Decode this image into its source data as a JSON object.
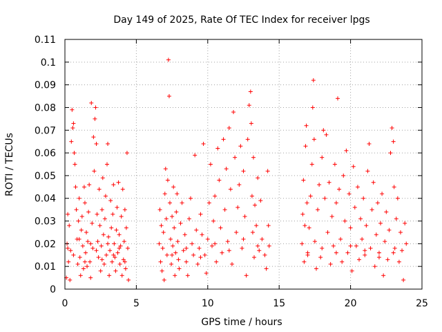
{
  "chart_data": {
    "type": "scatter",
    "title": "Day 149 of 2025, Rate Of TEC Index for receiver lpgs",
    "xlabel": "GPS time / hours",
    "ylabel": "ROTI / TECUs",
    "xlim": [
      0,
      25
    ],
    "ylim": [
      0,
      0.11
    ],
    "x_ticks": [
      0,
      5,
      10,
      15,
      20,
      25
    ],
    "x_tick_labels": [
      "0",
      "5",
      "10",
      "15",
      "20",
      "25"
    ],
    "y_ticks": [
      0,
      0.01,
      0.02,
      0.03,
      0.04,
      0.05,
      0.06,
      0.07,
      0.08,
      0.09,
      0.1,
      0.11
    ],
    "y_tick_labels": [
      "0",
      "0.01",
      "0.02",
      "0.03",
      "0.04",
      "0.05",
      "0.06",
      "0.07",
      "0.08",
      "0.09",
      "0.1",
      "0.11"
    ],
    "grid": true,
    "marker": "+",
    "series": [
      {
        "name": "ROTI",
        "color": "#ff0000",
        "points": [
          [
            0.1,
            0.005
          ],
          [
            0.15,
            0.02
          ],
          [
            0.2,
            0.033
          ],
          [
            0.25,
            0.012
          ],
          [
            0.3,
            0.028
          ],
          [
            0.35,
            0.004
          ],
          [
            0.4,
            0.017
          ],
          [
            0.45,
            0.065
          ],
          [
            0.5,
            0.079
          ],
          [
            0.55,
            0.071
          ],
          [
            0.6,
            0.073
          ],
          [
            0.65,
            0.06
          ],
          [
            0.7,
            0.055
          ],
          [
            0.75,
            0.045
          ],
          [
            0.8,
            0.035
          ],
          [
            0.85,
            0.022
          ],
          [
            0.9,
            0.011
          ],
          [
            0.95,
            0.03
          ],
          [
            1.0,
            0.04
          ],
          [
            1.05,
            0.014
          ],
          [
            1.1,
            0.006
          ],
          [
            1.15,
            0.026
          ],
          [
            1.2,
            0.032
          ],
          [
            1.25,
            0.019
          ],
          [
            1.3,
            0.009
          ],
          [
            1.35,
            0.045
          ],
          [
            1.4,
            0.038
          ],
          [
            1.45,
            0.016
          ],
          [
            1.5,
            0.025
          ],
          [
            1.55,
            0.01
          ],
          [
            1.6,
            0.021
          ],
          [
            1.65,
            0.034
          ],
          [
            1.7,
            0.046
          ],
          [
            1.75,
            0.012
          ],
          [
            1.8,
            0.005
          ],
          [
            1.85,
            0.082
          ],
          [
            1.9,
            0.029
          ],
          [
            1.95,
            0.018
          ],
          [
            2.0,
            0.067
          ],
          [
            2.05,
            0.052
          ],
          [
            2.1,
            0.075
          ],
          [
            2.15,
            0.08
          ],
          [
            2.2,
            0.064
          ],
          [
            2.25,
            0.033
          ],
          [
            2.3,
            0.021
          ],
          [
            2.35,
            0.014
          ],
          [
            2.4,
            0.044
          ],
          [
            2.45,
            0.028
          ],
          [
            2.5,
            0.008
          ],
          [
            2.55,
            0.019
          ],
          [
            2.6,
            0.035
          ],
          [
            2.65,
            0.049
          ],
          [
            2.7,
            0.024
          ],
          [
            2.75,
            0.011
          ],
          [
            2.8,
            0.031
          ],
          [
            2.85,
            0.041
          ],
          [
            2.9,
            0.015
          ],
          [
            2.95,
            0.055
          ],
          [
            3.0,
            0.064
          ],
          [
            3.05,
            0.023
          ],
          [
            3.1,
            0.006
          ],
          [
            3.15,
            0.017
          ],
          [
            3.2,
            0.039
          ],
          [
            3.25,
            0.027
          ],
          [
            3.3,
            0.012
          ],
          [
            3.35,
            0.033
          ],
          [
            3.4,
            0.046
          ],
          [
            3.45,
            0.02
          ],
          [
            3.5,
            0.014
          ],
          [
            3.55,
            0.008
          ],
          [
            3.6,
            0.026
          ],
          [
            3.65,
            0.036
          ],
          [
            3.7,
            0.016
          ],
          [
            3.75,
            0.047
          ],
          [
            3.8,
            0.024
          ],
          [
            3.85,
            0.011
          ],
          [
            3.9,
            0.019
          ],
          [
            3.95,
            0.032
          ],
          [
            4.0,
            0.006
          ],
          [
            4.05,
            0.044
          ],
          [
            4.1,
            0.013
          ],
          [
            4.15,
            0.021
          ],
          [
            4.2,
            0.035
          ],
          [
            4.25,
            0.009
          ],
          [
            4.3,
            0.027
          ],
          [
            4.35,
            0.06
          ],
          [
            4.4,
            0.018
          ],
          [
            4.45,
            0.004
          ],
          [
            0.2,
            0.018
          ],
          [
            0.6,
            0.015
          ],
          [
            1.0,
            0.022
          ],
          [
            1.4,
            0.012
          ],
          [
            1.8,
            0.02
          ],
          [
            2.2,
            0.017
          ],
          [
            2.6,
            0.013
          ],
          [
            3.0,
            0.02
          ],
          [
            3.4,
            0.015
          ],
          [
            3.8,
            0.018
          ],
          [
            4.2,
            0.012
          ],
          [
            6.6,
            0.02
          ],
          [
            6.65,
            0.035
          ],
          [
            6.7,
            0.012
          ],
          [
            6.75,
            0.028
          ],
          [
            6.8,
            0.008
          ],
          [
            6.85,
            0.018
          ],
          [
            6.9,
            0.025
          ],
          [
            6.95,
            0.004
          ],
          [
            7.0,
            0.042
          ],
          [
            7.05,
            0.053
          ],
          [
            7.1,
            0.031
          ],
          [
            7.15,
            0.015
          ],
          [
            7.2,
            0.048
          ],
          [
            7.25,
            0.101
          ],
          [
            7.3,
            0.085
          ],
          [
            7.35,
            0.038
          ],
          [
            7.4,
            0.022
          ],
          [
            7.45,
            0.011
          ],
          [
            7.5,
            0.032
          ],
          [
            7.55,
            0.019
          ],
          [
            7.6,
            0.045
          ],
          [
            7.65,
            0.027
          ],
          [
            7.7,
            0.006
          ],
          [
            7.75,
            0.016
          ],
          [
            7.8,
            0.034
          ],
          [
            7.85,
            0.042
          ],
          [
            7.9,
            0.021
          ],
          [
            7.95,
            0.013
          ],
          [
            8.0,
            0.009
          ],
          [
            8.1,
            0.029
          ],
          [
            8.2,
            0.038
          ],
          [
            8.3,
            0.017
          ],
          [
            8.4,
            0.024
          ],
          [
            8.5,
            0.012
          ],
          [
            8.6,
            0.006
          ],
          [
            8.7,
            0.031
          ],
          [
            8.8,
            0.04
          ],
          [
            8.9,
            0.02
          ],
          [
            9.0,
            0.015
          ],
          [
            9.1,
            0.059
          ],
          [
            9.2,
            0.026
          ],
          [
            9.3,
            0.011
          ],
          [
            9.4,
            0.018
          ],
          [
            9.5,
            0.033
          ],
          [
            9.6,
            0.024
          ],
          [
            9.7,
            0.064
          ],
          [
            9.8,
            0.015
          ],
          [
            9.9,
            0.007
          ],
          [
            10.0,
            0.022
          ],
          [
            10.1,
            0.038
          ],
          [
            10.2,
            0.055
          ],
          [
            10.3,
            0.019
          ],
          [
            10.4,
            0.03
          ],
          [
            10.5,
            0.041
          ],
          [
            10.6,
            0.012
          ],
          [
            10.7,
            0.062
          ],
          [
            10.8,
            0.048
          ],
          [
            10.9,
            0.027
          ],
          [
            11.0,
            0.016
          ],
          [
            11.1,
            0.066
          ],
          [
            11.2,
            0.035
          ],
          [
            11.3,
            0.053
          ],
          [
            11.4,
            0.021
          ],
          [
            11.5,
            0.071
          ],
          [
            11.6,
            0.044
          ],
          [
            11.7,
            0.011
          ],
          [
            11.8,
            0.078
          ],
          [
            11.9,
            0.058
          ],
          [
            12.0,
            0.025
          ],
          [
            12.1,
            0.036
          ],
          [
            12.2,
            0.046
          ],
          [
            12.3,
            0.063
          ],
          [
            12.4,
            0.018
          ],
          [
            12.5,
            0.052
          ],
          [
            12.6,
            0.032
          ],
          [
            12.7,
            0.006
          ],
          [
            12.8,
            0.066
          ],
          [
            12.9,
            0.081
          ],
          [
            13.0,
            0.087
          ],
          [
            13.05,
            0.073
          ],
          [
            13.1,
            0.041
          ],
          [
            13.15,
            0.025
          ],
          [
            13.2,
            0.058
          ],
          [
            13.25,
            0.014
          ],
          [
            13.3,
            0.037
          ],
          [
            13.4,
            0.028
          ],
          [
            13.5,
            0.049
          ],
          [
            13.6,
            0.017
          ],
          [
            13.7,
            0.039
          ],
          [
            13.8,
            0.022
          ],
          [
            14.0,
            0.015
          ],
          [
            14.1,
            0.009
          ],
          [
            14.2,
            0.052
          ],
          [
            14.25,
            0.028
          ],
          [
            14.3,
            0.019
          ],
          [
            7.5,
            0.015
          ],
          [
            8.5,
            0.018
          ],
          [
            9.5,
            0.014
          ],
          [
            10.5,
            0.02
          ],
          [
            11.5,
            0.017
          ],
          [
            12.5,
            0.022
          ],
          [
            13.5,
            0.019
          ],
          [
            16.6,
            0.02
          ],
          [
            16.65,
            0.033
          ],
          [
            16.7,
            0.048
          ],
          [
            16.75,
            0.012
          ],
          [
            16.8,
            0.028
          ],
          [
            16.85,
            0.063
          ],
          [
            16.9,
            0.072
          ],
          [
            16.95,
            0.038
          ],
          [
            17.0,
            0.016
          ],
          [
            17.1,
            0.027
          ],
          [
            17.2,
            0.041
          ],
          [
            17.3,
            0.055
          ],
          [
            17.35,
            0.08
          ],
          [
            17.4,
            0.092
          ],
          [
            17.45,
            0.066
          ],
          [
            17.5,
            0.021
          ],
          [
            17.6,
            0.009
          ],
          [
            17.7,
            0.035
          ],
          [
            17.8,
            0.046
          ],
          [
            17.9,
            0.014
          ],
          [
            18.0,
            0.058
          ],
          [
            18.1,
            0.07
          ],
          [
            18.2,
            0.04
          ],
          [
            18.3,
            0.068
          ],
          [
            18.4,
            0.025
          ],
          [
            18.5,
            0.047
          ],
          [
            18.6,
            0.011
          ],
          [
            18.7,
            0.032
          ],
          [
            18.8,
            0.019
          ],
          [
            18.9,
            0.055
          ],
          [
            19.0,
            0.038
          ],
          [
            19.1,
            0.084
          ],
          [
            19.2,
            0.044
          ],
          [
            19.3,
            0.022
          ],
          [
            19.4,
            0.012
          ],
          [
            19.5,
            0.05
          ],
          [
            19.6,
            0.03
          ],
          [
            19.7,
            0.061
          ],
          [
            19.8,
            0.016
          ],
          [
            19.9,
            0.042
          ],
          [
            20.0,
            0.027
          ],
          [
            20.1,
            0.008
          ],
          [
            20.2,
            0.054
          ],
          [
            20.3,
            0.036
          ],
          [
            20.4,
            0.019
          ],
          [
            20.5,
            0.045
          ],
          [
            20.6,
            0.013
          ],
          [
            20.7,
            0.031
          ],
          [
            20.8,
            0.022
          ],
          [
            20.9,
            0.04
          ],
          [
            21.0,
            0.015
          ],
          [
            21.1,
            0.028
          ],
          [
            21.2,
            0.052
          ],
          [
            21.3,
            0.064
          ],
          [
            21.4,
            0.018
          ],
          [
            21.5,
            0.035
          ],
          [
            21.6,
            0.047
          ],
          [
            21.7,
            0.01
          ],
          [
            21.8,
            0.024
          ],
          [
            21.9,
            0.038
          ],
          [
            22.0,
            0.016
          ],
          [
            22.1,
            0.029
          ],
          [
            22.2,
            0.042
          ],
          [
            22.3,
            0.006
          ],
          [
            22.4,
            0.021
          ],
          [
            22.5,
            0.034
          ],
          [
            22.6,
            0.013
          ],
          [
            22.7,
            0.026
          ],
          [
            22.8,
            0.06
          ],
          [
            22.9,
            0.071
          ],
          [
            23.0,
            0.065
          ],
          [
            23.05,
            0.045
          ],
          [
            23.1,
            0.018
          ],
          [
            23.2,
            0.031
          ],
          [
            23.3,
            0.04
          ],
          [
            23.4,
            0.012
          ],
          [
            23.5,
            0.025
          ],
          [
            23.6,
            0.017
          ],
          [
            23.7,
            0.004
          ],
          [
            23.8,
            0.029
          ],
          [
            23.9,
            0.02
          ],
          [
            17.0,
            0.015
          ],
          [
            18.0,
            0.018
          ],
          [
            19.0,
            0.016
          ],
          [
            20.0,
            0.019
          ],
          [
            21.0,
            0.017
          ],
          [
            22.0,
            0.014
          ],
          [
            23.0,
            0.016
          ]
        ]
      }
    ]
  }
}
